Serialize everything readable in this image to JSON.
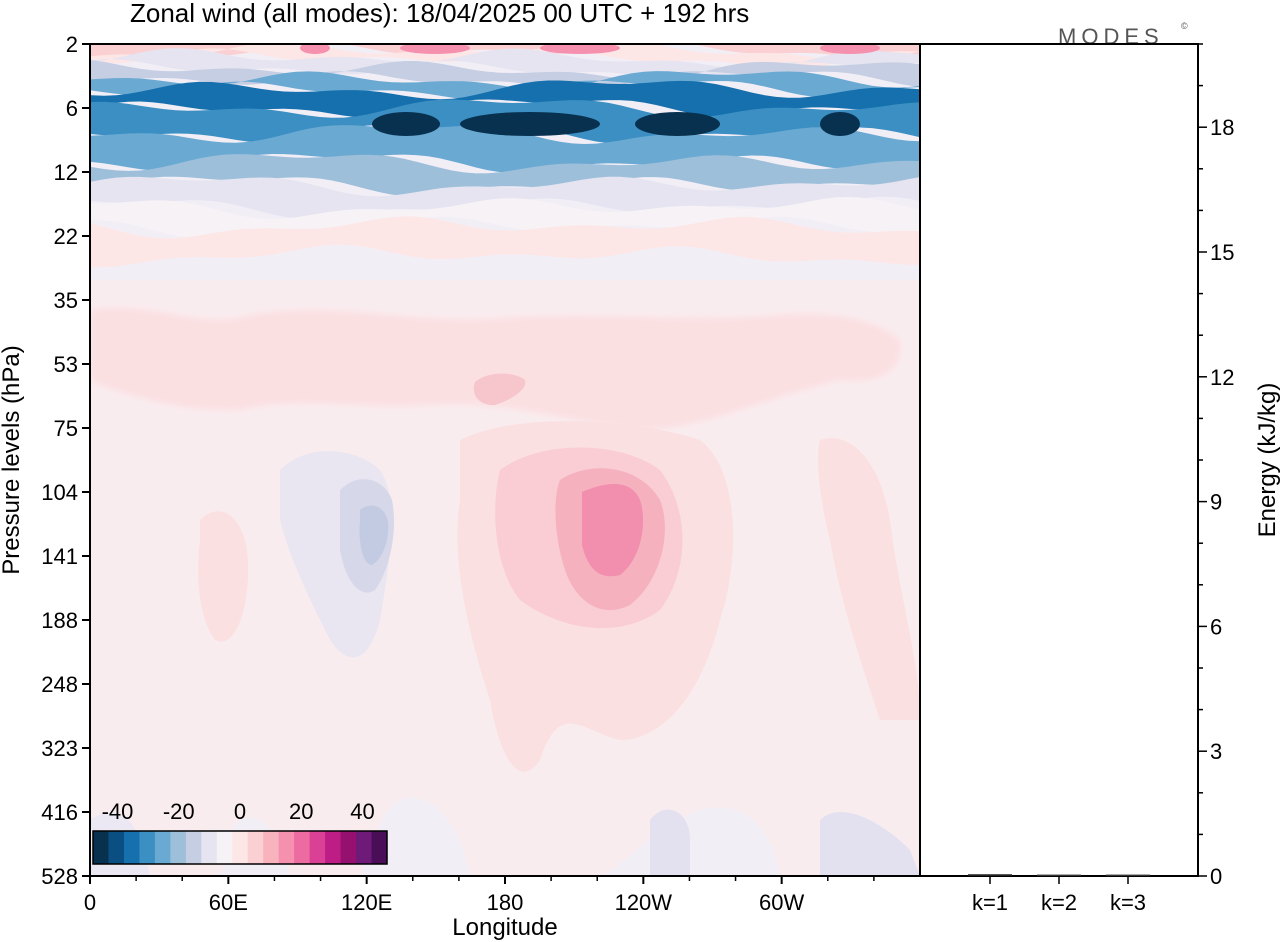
{
  "chart_data": [
    {
      "type": "heatmap",
      "title": "Zonal wind (all modes):  18/04/2025  00 UTC  + 192 hrs",
      "xlabel": "Longitude",
      "ylabel": "Pressure levels (hPa)",
      "x_ticks": [
        "0",
        "60E",
        "120E",
        "180",
        "120W",
        "60W"
      ],
      "x_tick_degrees_east": [
        0,
        60,
        120,
        180,
        240,
        300
      ],
      "xlim": [
        0,
        360
      ],
      "y_ticks": [
        "2",
        "6",
        "12",
        "22",
        "35",
        "53",
        "75",
        "104",
        "141",
        "188",
        "248",
        "323",
        "416",
        "528"
      ],
      "colorbar": {
        "ticks": [
          "-40",
          "-20",
          "0",
          "20",
          "40"
        ],
        "tick_values": [
          -40,
          -20,
          0,
          20,
          40
        ],
        "range": [
          -48,
          48
        ],
        "colors": [
          "#08304f",
          "#0b4f82",
          "#1670ad",
          "#3b8fc3",
          "#6aa9d2",
          "#9ebfda",
          "#c5cee3",
          "#e5e4f0",
          "#f7f2f6",
          "#fde6e6",
          "#fbd0d3",
          "#f8b3bd",
          "#f591ae",
          "#ec6ba0",
          "#db4097",
          "#bf1d86",
          "#95106f",
          "#6e1a78",
          "#4a0d58"
        ]
      },
      "features": [
        {
          "level": "6",
          "value": -38,
          "note": "strong easterly band 6–12 hPa across all longitudes"
        },
        {
          "level": "12",
          "value": -28
        },
        {
          "level": "22",
          "value": -12
        },
        {
          "level": "35",
          "value": -2
        },
        {
          "level": "53",
          "value": 8
        },
        {
          "level": "141",
          "longitude": 230,
          "value": 22,
          "note": "westerly maximum near 130W"
        },
        {
          "level": "141",
          "longitude": 125,
          "value": -10,
          "note": "weak easterlies near 125E"
        }
      ]
    },
    {
      "type": "bar",
      "categories": [
        "k=1",
        "k=2",
        "k=3"
      ],
      "values": [
        0.02,
        0.01,
        0.01
      ],
      "ylabel": "Energy (kJ/kg)",
      "y_ticks": [
        "0",
        "3",
        "6",
        "9",
        "12",
        "15",
        "18"
      ],
      "ylim": [
        0,
        20
      ]
    }
  ],
  "brand": "MODES",
  "brand_mark": "©"
}
